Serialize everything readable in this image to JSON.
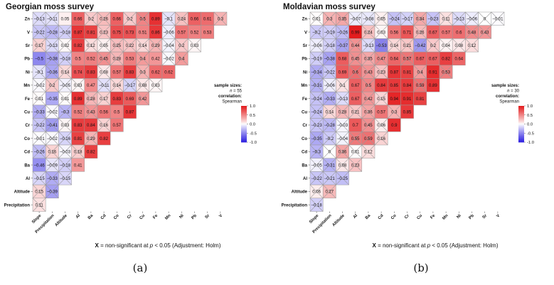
{
  "colors": {
    "positive": "#e31a1c",
    "negative": "#2c1fe0",
    "neutral": "#ffffff",
    "grid": "#9a9a9a"
  },
  "variables_display_order": [
    "Zn",
    "V",
    "Sr",
    "Pb",
    "Ni",
    "Mn",
    "Fe",
    "Cu",
    "Cr",
    "Co",
    "Cd",
    "Ba",
    "Al",
    "Altitude",
    "Precipitation"
  ],
  "x_tick_labels": [
    "Slope",
    "Precipitation",
    "Altitude",
    "Al",
    "Ba",
    "Cd",
    "Co",
    "Cr",
    "Cu",
    "Fe",
    "Mn",
    "Ni",
    "Pb",
    "Sr",
    "V"
  ],
  "footnote": {
    "symbol": "X",
    "text": " = non-significant at ",
    "p_text": "p",
    "threshold": " < 0.05 (Adjustment: Holm)"
  },
  "legend": {
    "sample_sizes_label": "sample sizes:",
    "n_label": "n",
    "correlation_label": "correlation:",
    "method": "Spearman",
    "ticks": [
      "1.0",
      "0.5",
      "0.0",
      "-0.5",
      "-1.0"
    ]
  },
  "chart_data": [
    {
      "type": "heatmap",
      "title": "Georgian moss survey",
      "caption": "(a)",
      "sample_size": "55",
      "range": [
        -1,
        1
      ],
      "rows": [
        {
          "label": "Zn",
          "values": [
            -0.13,
            -0.11,
            0.05,
            0.66,
            0.2,
            0.26,
            0.66,
            0.2,
            0.5,
            0.89,
            -0.1,
            0.24,
            0.66,
            0.61,
            0.3
          ],
          "nonsig": [
            1,
            1,
            0,
            0,
            1,
            1,
            0,
            1,
            1,
            0,
            1,
            1,
            0,
            0,
            1
          ]
        },
        {
          "label": "V",
          "values": [
            -0.22,
            -0.28,
            -0.18,
            0.87,
            0.81,
            0.23,
            0.75,
            0.73,
            0.51,
            0.86,
            -0.06,
            0.57,
            0.52,
            0.53
          ],
          "nonsig": [
            1,
            1,
            1,
            0,
            0,
            1,
            0,
            0,
            0,
            0,
            1,
            0,
            0,
            0
          ]
        },
        {
          "label": "Sr",
          "values": [
            0.17,
            -0.13,
            0.02,
            0.82,
            0.12,
            0.05,
            0.25,
            0.22,
            0.14,
            0.29,
            -0.04,
            0.2,
            0.03
          ],
          "nonsig": [
            1,
            1,
            1,
            0,
            1,
            1,
            1,
            1,
            1,
            1,
            1,
            1,
            1
          ]
        },
        {
          "label": "Pb",
          "values": [
            -0.5,
            -0.38,
            -0.18,
            0.5,
            0.52,
            0.45,
            0.28,
            0.53,
            0.4,
            0.42,
            -0.02,
            0.4
          ],
          "nonsig": [
            0,
            1,
            1,
            0,
            0,
            1,
            1,
            0,
            1,
            0,
            1,
            1
          ]
        },
        {
          "label": "Ni",
          "values": [
            -0.1,
            -0.36,
            0.14,
            0.74,
            0.83,
            0.08,
            0.57,
            0.83,
            0.3,
            0.62,
            0.62
          ],
          "nonsig": [
            1,
            1,
            1,
            0,
            0,
            1,
            0,
            0,
            1,
            0,
            0
          ]
        },
        {
          "label": "Mn",
          "values": [
            -0.02,
            0.2,
            -0.05,
            0.03,
            0.47,
            -0.11,
            0.14,
            -0.17,
            0.08,
            0.03
          ],
          "nonsig": [
            1,
            1,
            1,
            1,
            0,
            1,
            1,
            1,
            1,
            1
          ]
        },
        {
          "label": "Fe",
          "values": [
            0.01,
            -0.35,
            0.01,
            0.89,
            0.28,
            0.17,
            0.83,
            0.69,
            0.42
          ],
          "nonsig": [
            1,
            0,
            1,
            0,
            1,
            1,
            0,
            0,
            1
          ]
        },
        {
          "label": "Cu",
          "values": [
            -0.33,
            -0.02,
            -0.3,
            0.52,
            0.43,
            0.56,
            0.5,
            0.87
          ],
          "nonsig": [
            1,
            1,
            1,
            0,
            1,
            0,
            0,
            0
          ]
        },
        {
          "label": "Cr",
          "values": [
            -0.22,
            -0.41,
            0.03,
            0.83,
            0.84,
            0.16,
            0.57
          ],
          "nonsig": [
            1,
            1,
            1,
            0,
            0,
            1,
            0
          ]
        },
        {
          "label": "Co",
          "values": [
            -0.01,
            -0.02,
            -0.16,
            0.81,
            0.29,
            0.82
          ],
          "nonsig": [
            1,
            1,
            1,
            0,
            1,
            0
          ]
        },
        {
          "label": "Cd",
          "values": [
            -0.26,
            0.16,
            -0.03,
            0.18,
            0.82
          ],
          "nonsig": [
            1,
            1,
            1,
            1,
            0
          ]
        },
        {
          "label": "Ba",
          "values": [
            -0.46,
            -0.09,
            -0.18,
            0.41
          ],
          "nonsig": [
            0,
            1,
            1,
            0
          ]
        },
        {
          "label": "Al",
          "values": [
            -0.15,
            -0.33,
            -0.15
          ],
          "nonsig": [
            1,
            1,
            1
          ]
        },
        {
          "label": "Altitude",
          "values": [
            0.15,
            -0.39
          ],
          "nonsig": [
            1,
            1
          ]
        },
        {
          "label": "Precipitation",
          "values": [
            0.11
          ],
          "nonsig": [
            1
          ]
        }
      ]
    },
    {
      "type": "heatmap",
      "title": "Moldavian moss survey",
      "caption": "(b)",
      "sample_size": "30",
      "range": [
        -1,
        1
      ],
      "rows": [
        {
          "label": "Zn",
          "values": [
            0.01,
            0.3,
            0.35,
            -0.07,
            -0.08,
            0.05,
            -0.24,
            -0.17,
            0.34,
            -0.23,
            0.11,
            -0.13,
            -0.06,
            0,
            -0.01
          ],
          "nonsig": [
            1,
            1,
            1,
            1,
            1,
            1,
            1,
            1,
            1,
            1,
            1,
            1,
            1,
            1,
            1
          ]
        },
        {
          "label": "V",
          "values": [
            -0.2,
            -0.19,
            -0.26,
            0.99,
            0.24,
            0.03,
            0.56,
            0.71,
            0.26,
            0.67,
            0.57,
            0.6,
            0.48,
            0.43
          ],
          "nonsig": [
            1,
            1,
            1,
            0,
            1,
            1,
            0,
            0,
            1,
            0,
            0,
            0,
            1,
            1
          ]
        },
        {
          "label": "Sr",
          "values": [
            -0.06,
            -0.18,
            -0.37,
            0.44,
            -0.13,
            -0.53,
            0.14,
            0.21,
            -0.42,
            0.2,
            0.04,
            0.08,
            0.12
          ],
          "nonsig": [
            1,
            1,
            1,
            1,
            1,
            1,
            1,
            1,
            1,
            1,
            1,
            1,
            1
          ]
        },
        {
          "label": "Pb",
          "values": [
            -0.19,
            -0.38,
            0.68,
            0.45,
            0.35,
            0.47,
            0.64,
            0.57,
            0.67,
            0.67,
            0.82,
            0.64
          ],
          "nonsig": [
            1,
            1,
            0,
            1,
            1,
            1,
            0,
            1,
            0,
            0,
            0,
            0
          ]
        },
        {
          "label": "Ni",
          "values": [
            -0.34,
            -0.22,
            0.69,
            0.6,
            0.43,
            0.23,
            0.87,
            0.81,
            0.4,
            0.91,
            0.53
          ],
          "nonsig": [
            1,
            1,
            0,
            1,
            1,
            1,
            0,
            0,
            1,
            0,
            1
          ]
        },
        {
          "label": "Mn",
          "values": [
            -0.31,
            -0.06,
            0.1,
            0.67,
            0.5,
            0.84,
            0.85,
            0.84,
            0.59,
            0.89
          ],
          "nonsig": [
            1,
            1,
            1,
            0,
            1,
            0,
            0,
            0,
            1,
            0
          ]
        },
        {
          "label": "Fe",
          "values": [
            -0.24,
            -0.33,
            -0.13,
            0.67,
            0.42,
            0.15,
            0.94,
            0.91,
            0.81
          ],
          "nonsig": [
            1,
            1,
            1,
            0,
            1,
            1,
            0,
            0,
            0
          ]
        },
        {
          "label": "Cu",
          "values": [
            -0.24,
            0.14,
            0.28,
            0.21,
            0.36,
            0.57,
            0.3,
            0.85
          ],
          "nonsig": [
            1,
            1,
            1,
            1,
            1,
            0,
            1,
            0
          ]
        },
        {
          "label": "Cr",
          "values": [
            -0.23,
            -0.28,
            -0.03,
            0.7,
            0.45,
            0.06,
            0.9
          ],
          "nonsig": [
            1,
            1,
            1,
            0,
            1,
            1,
            0
          ]
        },
        {
          "label": "Co",
          "values": [
            -0.35,
            -0.2,
            -0.04,
            0.55,
            0.59,
            0.16
          ],
          "nonsig": [
            1,
            1,
            1,
            1,
            1,
            1
          ]
        },
        {
          "label": "Cd",
          "values": [
            -0.3,
            0,
            0.36,
            0.01,
            0.12
          ],
          "nonsig": [
            1,
            1,
            1,
            1,
            1
          ]
        },
        {
          "label": "Ba",
          "values": [
            -0.05,
            -0.31,
            0.08,
            0.23
          ],
          "nonsig": [
            1,
            1,
            1,
            1
          ]
        },
        {
          "label": "Al",
          "values": [
            -0.22,
            -0.21,
            -0.25
          ],
          "nonsig": [
            1,
            1,
            1
          ]
        },
        {
          "label": "Altitude",
          "values": [
            0.06,
            0.27
          ],
          "nonsig": [
            1,
            1
          ]
        },
        {
          "label": "Precipitation",
          "values": [
            -0.18
          ],
          "nonsig": [
            1
          ]
        }
      ]
    }
  ]
}
